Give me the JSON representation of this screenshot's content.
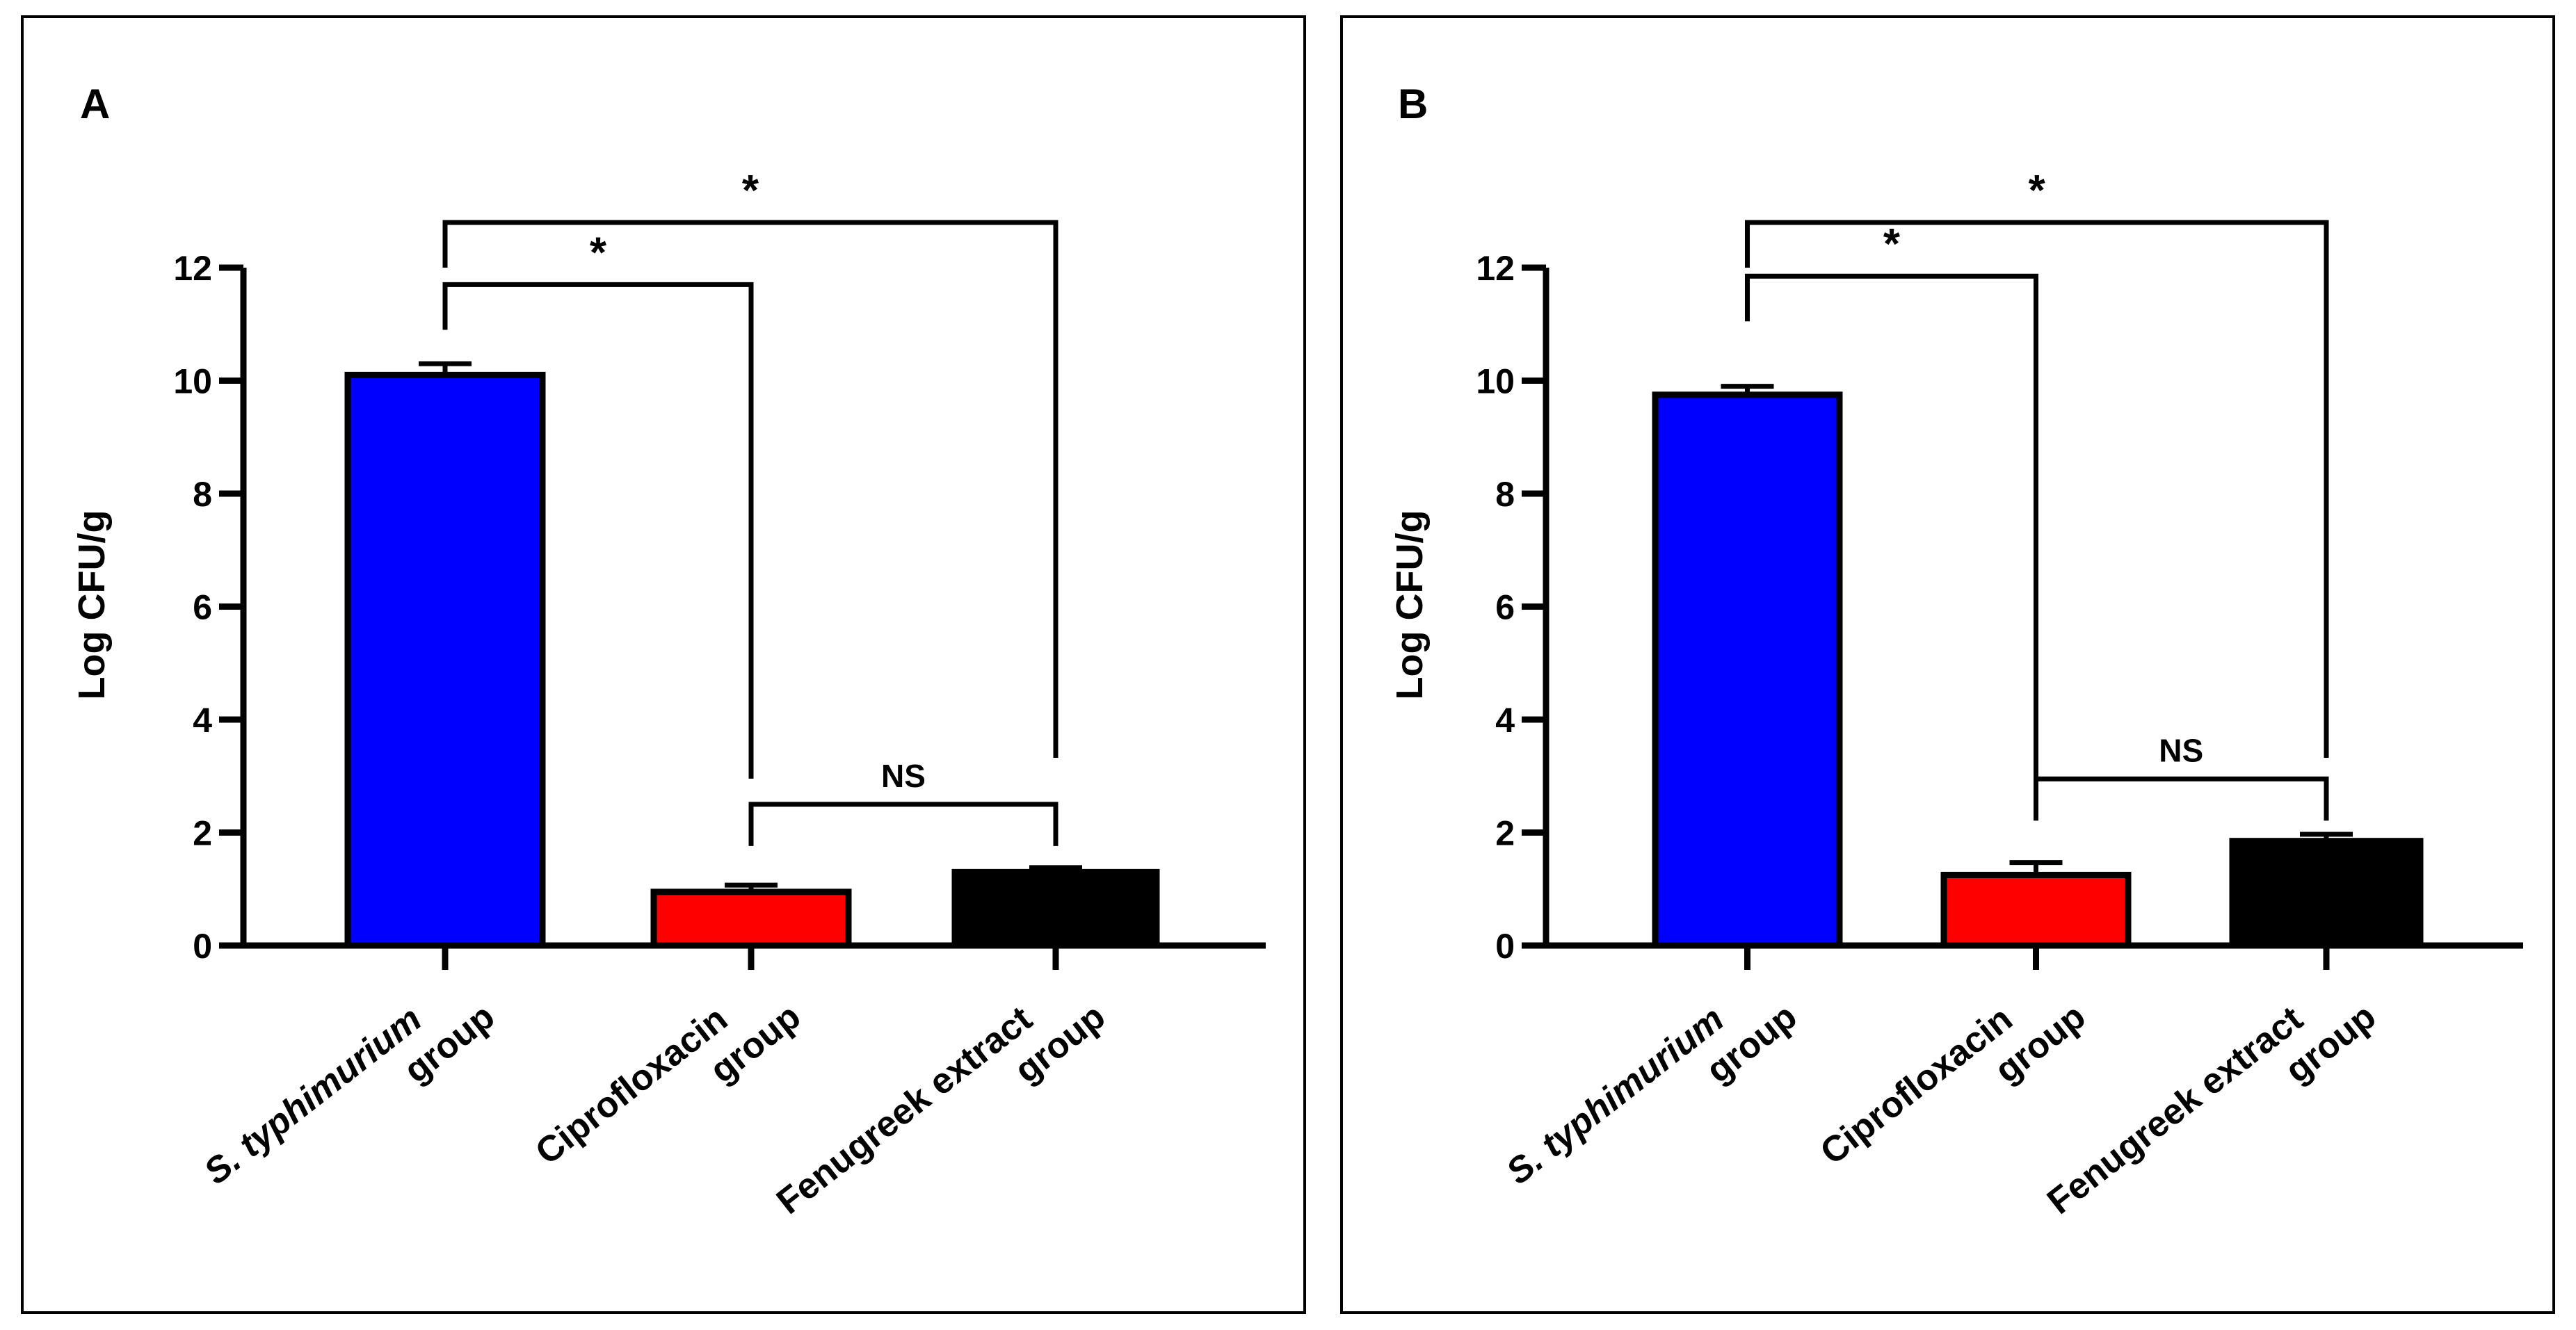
{
  "chart_data": [
    {
      "panel": "A",
      "type": "bar",
      "ylabel": "Log CFU/g",
      "ylim": [
        0,
        12
      ],
      "yticks": [
        "0",
        "2",
        "4",
        "6",
        "8",
        "10",
        "12"
      ],
      "categories": [
        {
          "italic": "S. typhimurium",
          "rest": "group"
        },
        {
          "italic": "",
          "rest": "Ciprofloxacin group"
        },
        {
          "italic": "",
          "rest": "Fenugreek extract group"
        }
      ],
      "values": [
        10.1,
        0.95,
        1.3
      ],
      "errors": [
        0.2,
        0.12,
        0.08
      ],
      "colors": [
        "#0000ff",
        "#ff0000",
        "#000000"
      ],
      "annotations": [
        {
          "between": [
            0,
            2
          ],
          "label": "*",
          "y": 12.8
        },
        {
          "between": [
            0,
            1
          ],
          "label": "*",
          "y": 11.7
        },
        {
          "between": [
            1,
            2
          ],
          "label": "NS",
          "y": 2.5
        }
      ]
    },
    {
      "panel": "B",
      "type": "bar",
      "ylabel": "Log CFU/g",
      "ylim": [
        0,
        12
      ],
      "yticks": [
        "0",
        "2",
        "4",
        "6",
        "8",
        "10",
        "12"
      ],
      "categories": [
        {
          "italic": "S. typhimurium",
          "rest": "group"
        },
        {
          "italic": "",
          "rest": "Ciprofloxacin group"
        },
        {
          "italic": "",
          "rest": "Fenugreek extract group"
        }
      ],
      "values": [
        9.75,
        1.25,
        1.85
      ],
      "errors": [
        0.15,
        0.22,
        0.12
      ],
      "colors": [
        "#0000ff",
        "#ff0000",
        "#000000"
      ],
      "annotations": [
        {
          "between": [
            0,
            2
          ],
          "label": "*",
          "y": 12.8
        },
        {
          "between": [
            0,
            1
          ],
          "label": "*",
          "y": 11.85
        },
        {
          "between": [
            1,
            2
          ],
          "label": "NS",
          "y": 2.95
        }
      ]
    }
  ]
}
